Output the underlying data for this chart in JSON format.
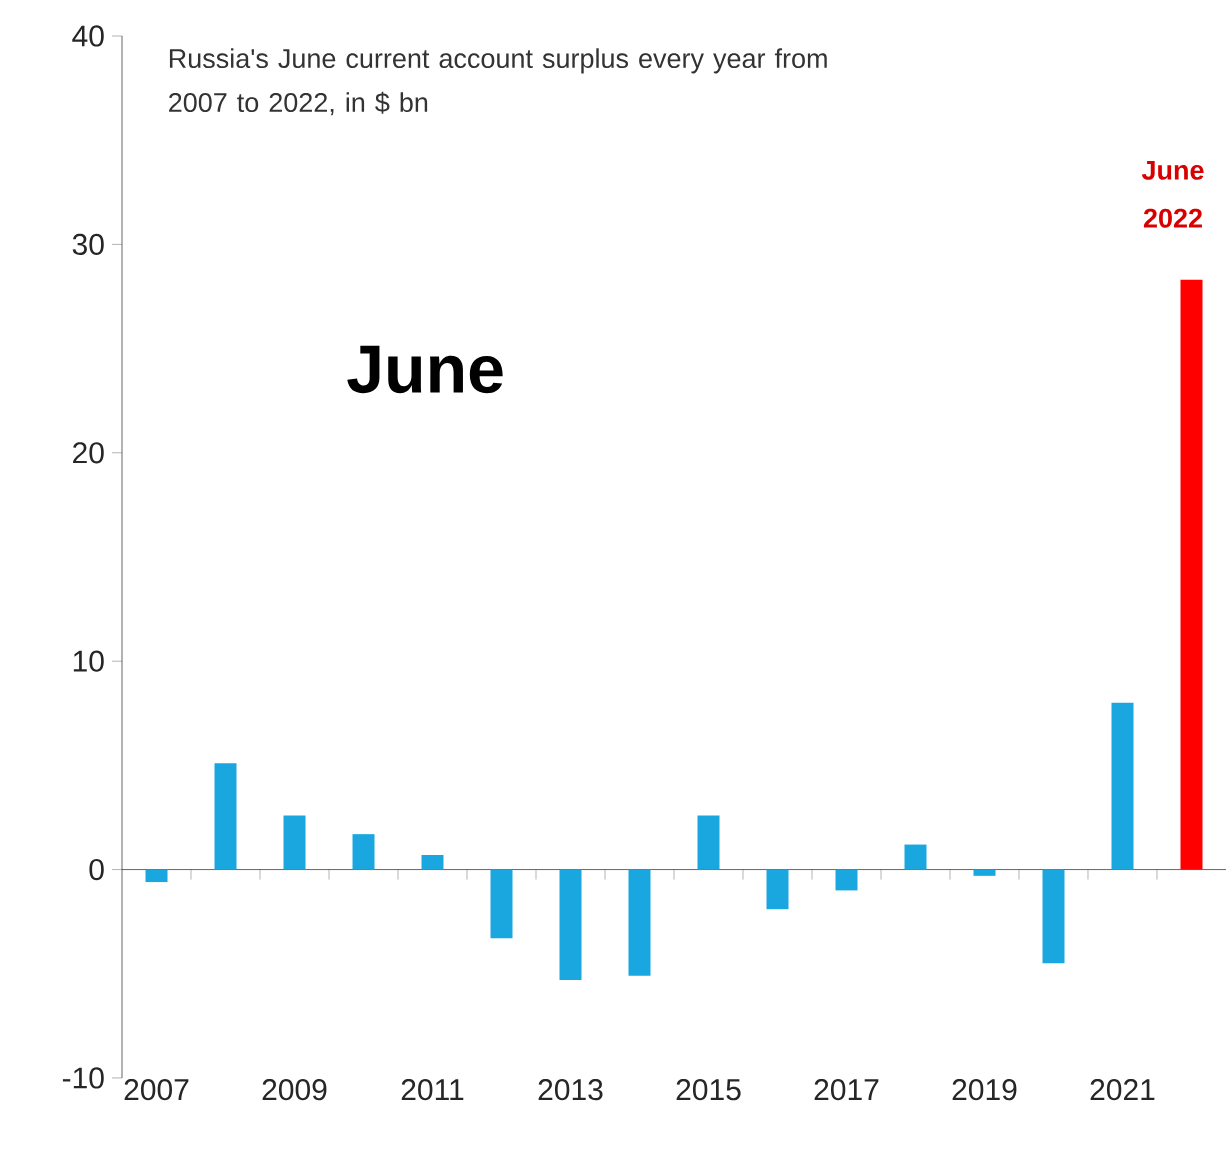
{
  "chart_data": {
    "type": "bar",
    "title": "Russia's June current account surplus every year from 2007 to 2022, in $ bn",
    "categories": [
      "2007",
      null,
      "2009",
      null,
      "2011",
      null,
      "2013",
      null,
      "2015",
      null,
      "2017",
      null,
      "2019",
      null,
      "2021",
      null
    ],
    "values": [
      -0.6,
      5.1,
      2.6,
      1.7,
      0.7,
      -3.3,
      -5.3,
      -5.1,
      2.6,
      -1.9,
      -1.0,
      1.2,
      -0.3,
      -4.5,
      8.0,
      28.3
    ],
    "colors": [
      "#1aa7e0",
      "#1aa7e0",
      "#1aa7e0",
      "#1aa7e0",
      "#1aa7e0",
      "#1aa7e0",
      "#1aa7e0",
      "#1aa7e0",
      "#1aa7e0",
      "#1aa7e0",
      "#1aa7e0",
      "#1aa7e0",
      "#1aa7e0",
      "#1aa7e0",
      "#1aa7e0",
      "#ff0000"
    ],
    "ylim": [
      -10,
      40
    ],
    "yticks": [
      -10,
      0,
      10,
      20,
      30,
      40
    ],
    "annotations": [
      "June",
      "June 2022"
    ]
  }
}
